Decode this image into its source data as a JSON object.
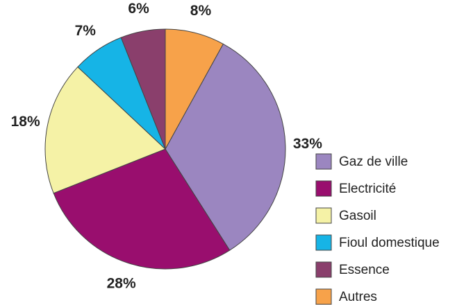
{
  "chart_data": {
    "type": "pie",
    "categories": [
      "Gaz de ville",
      "Electricité",
      "Gasoil",
      "Fioul domestique",
      "Essence",
      "Autres"
    ],
    "values": [
      33,
      28,
      18,
      7,
      6,
      8
    ],
    "value_labels": [
      "33%",
      "28%",
      "18%",
      "7%",
      "6%",
      "8%"
    ],
    "colors": [
      "#9b86c0",
      "#990e6e",
      "#f5f2a6",
      "#16b4e6",
      "#8a3f6c",
      "#f7a24a"
    ],
    "legend": "right"
  }
}
